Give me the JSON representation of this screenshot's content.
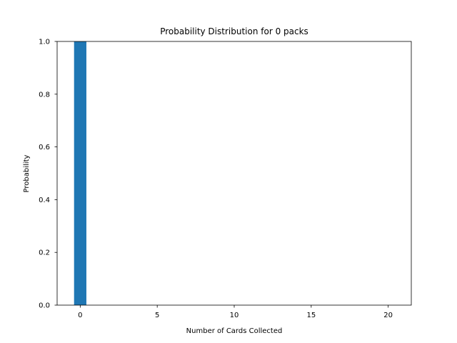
{
  "chart_data": {
    "type": "bar",
    "title": "Probability Distribution for 0 packs",
    "xlabel": "Number of Cards Collected",
    "ylabel": "Probability",
    "x": [
      0
    ],
    "values": [
      1.0
    ],
    "bar_width": 0.8,
    "xlim": [
      -1.5,
      21.5
    ],
    "ylim": [
      0,
      1.0
    ],
    "xticks": [
      0,
      5,
      10,
      15,
      20
    ],
    "xtick_labels": [
      "0",
      "5",
      "10",
      "15",
      "20"
    ],
    "yticks": [
      0,
      0.2,
      0.4,
      0.6,
      0.8,
      1.0
    ],
    "ytick_labels": [
      "0.0",
      "0.2",
      "0.4",
      "0.6",
      "0.8",
      "1.0"
    ],
    "bar_color": "#1f77b4",
    "grid": false,
    "legend": "none"
  }
}
